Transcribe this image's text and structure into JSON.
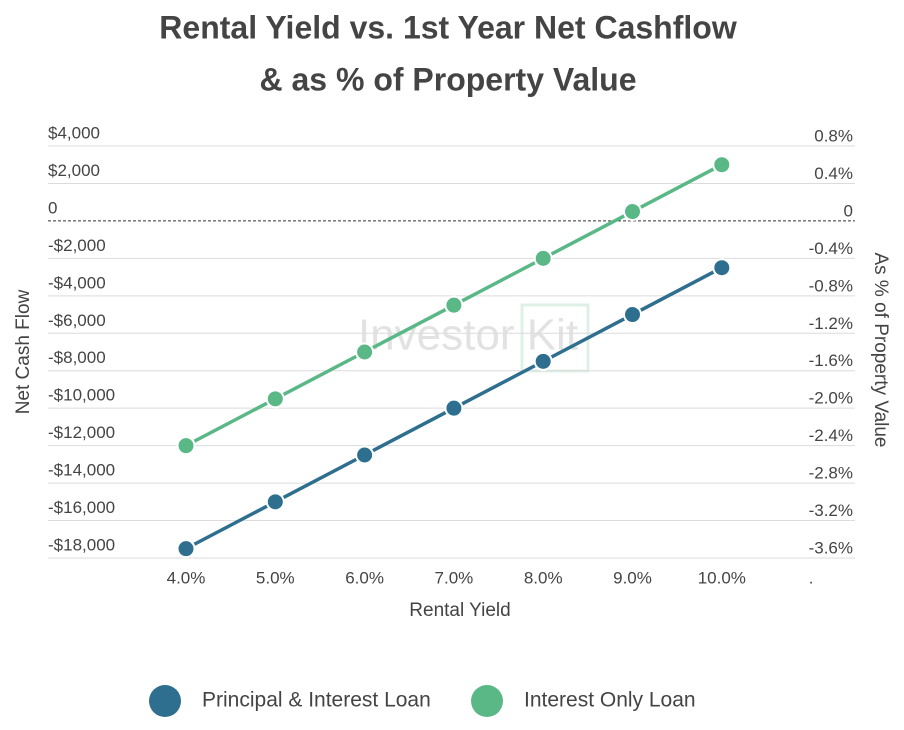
{
  "chart_data": {
    "type": "line",
    "title": [
      "Rental Yield vs. 1st Year Net Cashflow",
      "& as % of Property Value"
    ],
    "xlabel": "Rental Yield",
    "ylabel": "Net Cash Flow",
    "y2label": "As % of Property Value",
    "watermark": "Investor Kit",
    "categories": [
      "4.0%",
      "5.0%",
      "6.0%",
      "7.0%",
      "8.0%",
      "9.0%",
      "10.0%",
      "."
    ],
    "series": [
      {
        "name": "Principal & Interest Loan",
        "color": "#2e6f8f",
        "values": [
          -17500,
          -15000,
          -12500,
          -10000,
          -7500,
          -5000,
          -2500,
          null
        ]
      },
      {
        "name": "Interest Only Loan",
        "color": "#5ab887",
        "values": [
          -12000,
          -9500,
          -7000,
          -4500,
          -2000,
          500,
          3000,
          null
        ]
      }
    ],
    "ylim": [
      -18000,
      4000
    ],
    "yticks": [
      {
        "value": 4000,
        "label": "$4,000"
      },
      {
        "value": 2000,
        "label": "$2,000"
      },
      0,
      {
        "value": -2000,
        "label": "-$2,000"
      },
      {
        "value": -4000,
        "label": "-$4,000"
      },
      {
        "value": -6000,
        "label": "-$6,000"
      },
      {
        "value": -8000,
        "label": "-$8,000"
      },
      {
        "value": -10000,
        "label": "-$10,000"
      },
      {
        "value": -12000,
        "label": "-$12,000"
      },
      {
        "value": -14000,
        "label": "-$14,000"
      },
      {
        "value": -16000,
        "label": "-$16,000"
      },
      {
        "value": -18000,
        "label": "-$18,000"
      }
    ],
    "y2lim": [
      -3.6,
      0.8
    ],
    "y2ticks": [
      {
        "value": 0.8,
        "label": "0.8%"
      },
      {
        "value": 0.4,
        "label": "0.4%"
      },
      0,
      {
        "value": -0.4,
        "label": "-0.4%"
      },
      {
        "value": -0.8,
        "label": "-0.8%"
      },
      {
        "value": -1.2,
        "label": "-1.2%"
      },
      {
        "value": -1.6,
        "label": "-1.6%"
      },
      {
        "value": -2.0,
        "label": "-2.0%"
      },
      {
        "value": -2.4,
        "label": "-2.4%"
      },
      {
        "value": -2.8,
        "label": "-2.8%"
      },
      {
        "value": -3.2,
        "label": "-3.2%"
      },
      {
        "value": -3.6,
        "label": "-3.6%"
      }
    ],
    "grid": true
  }
}
